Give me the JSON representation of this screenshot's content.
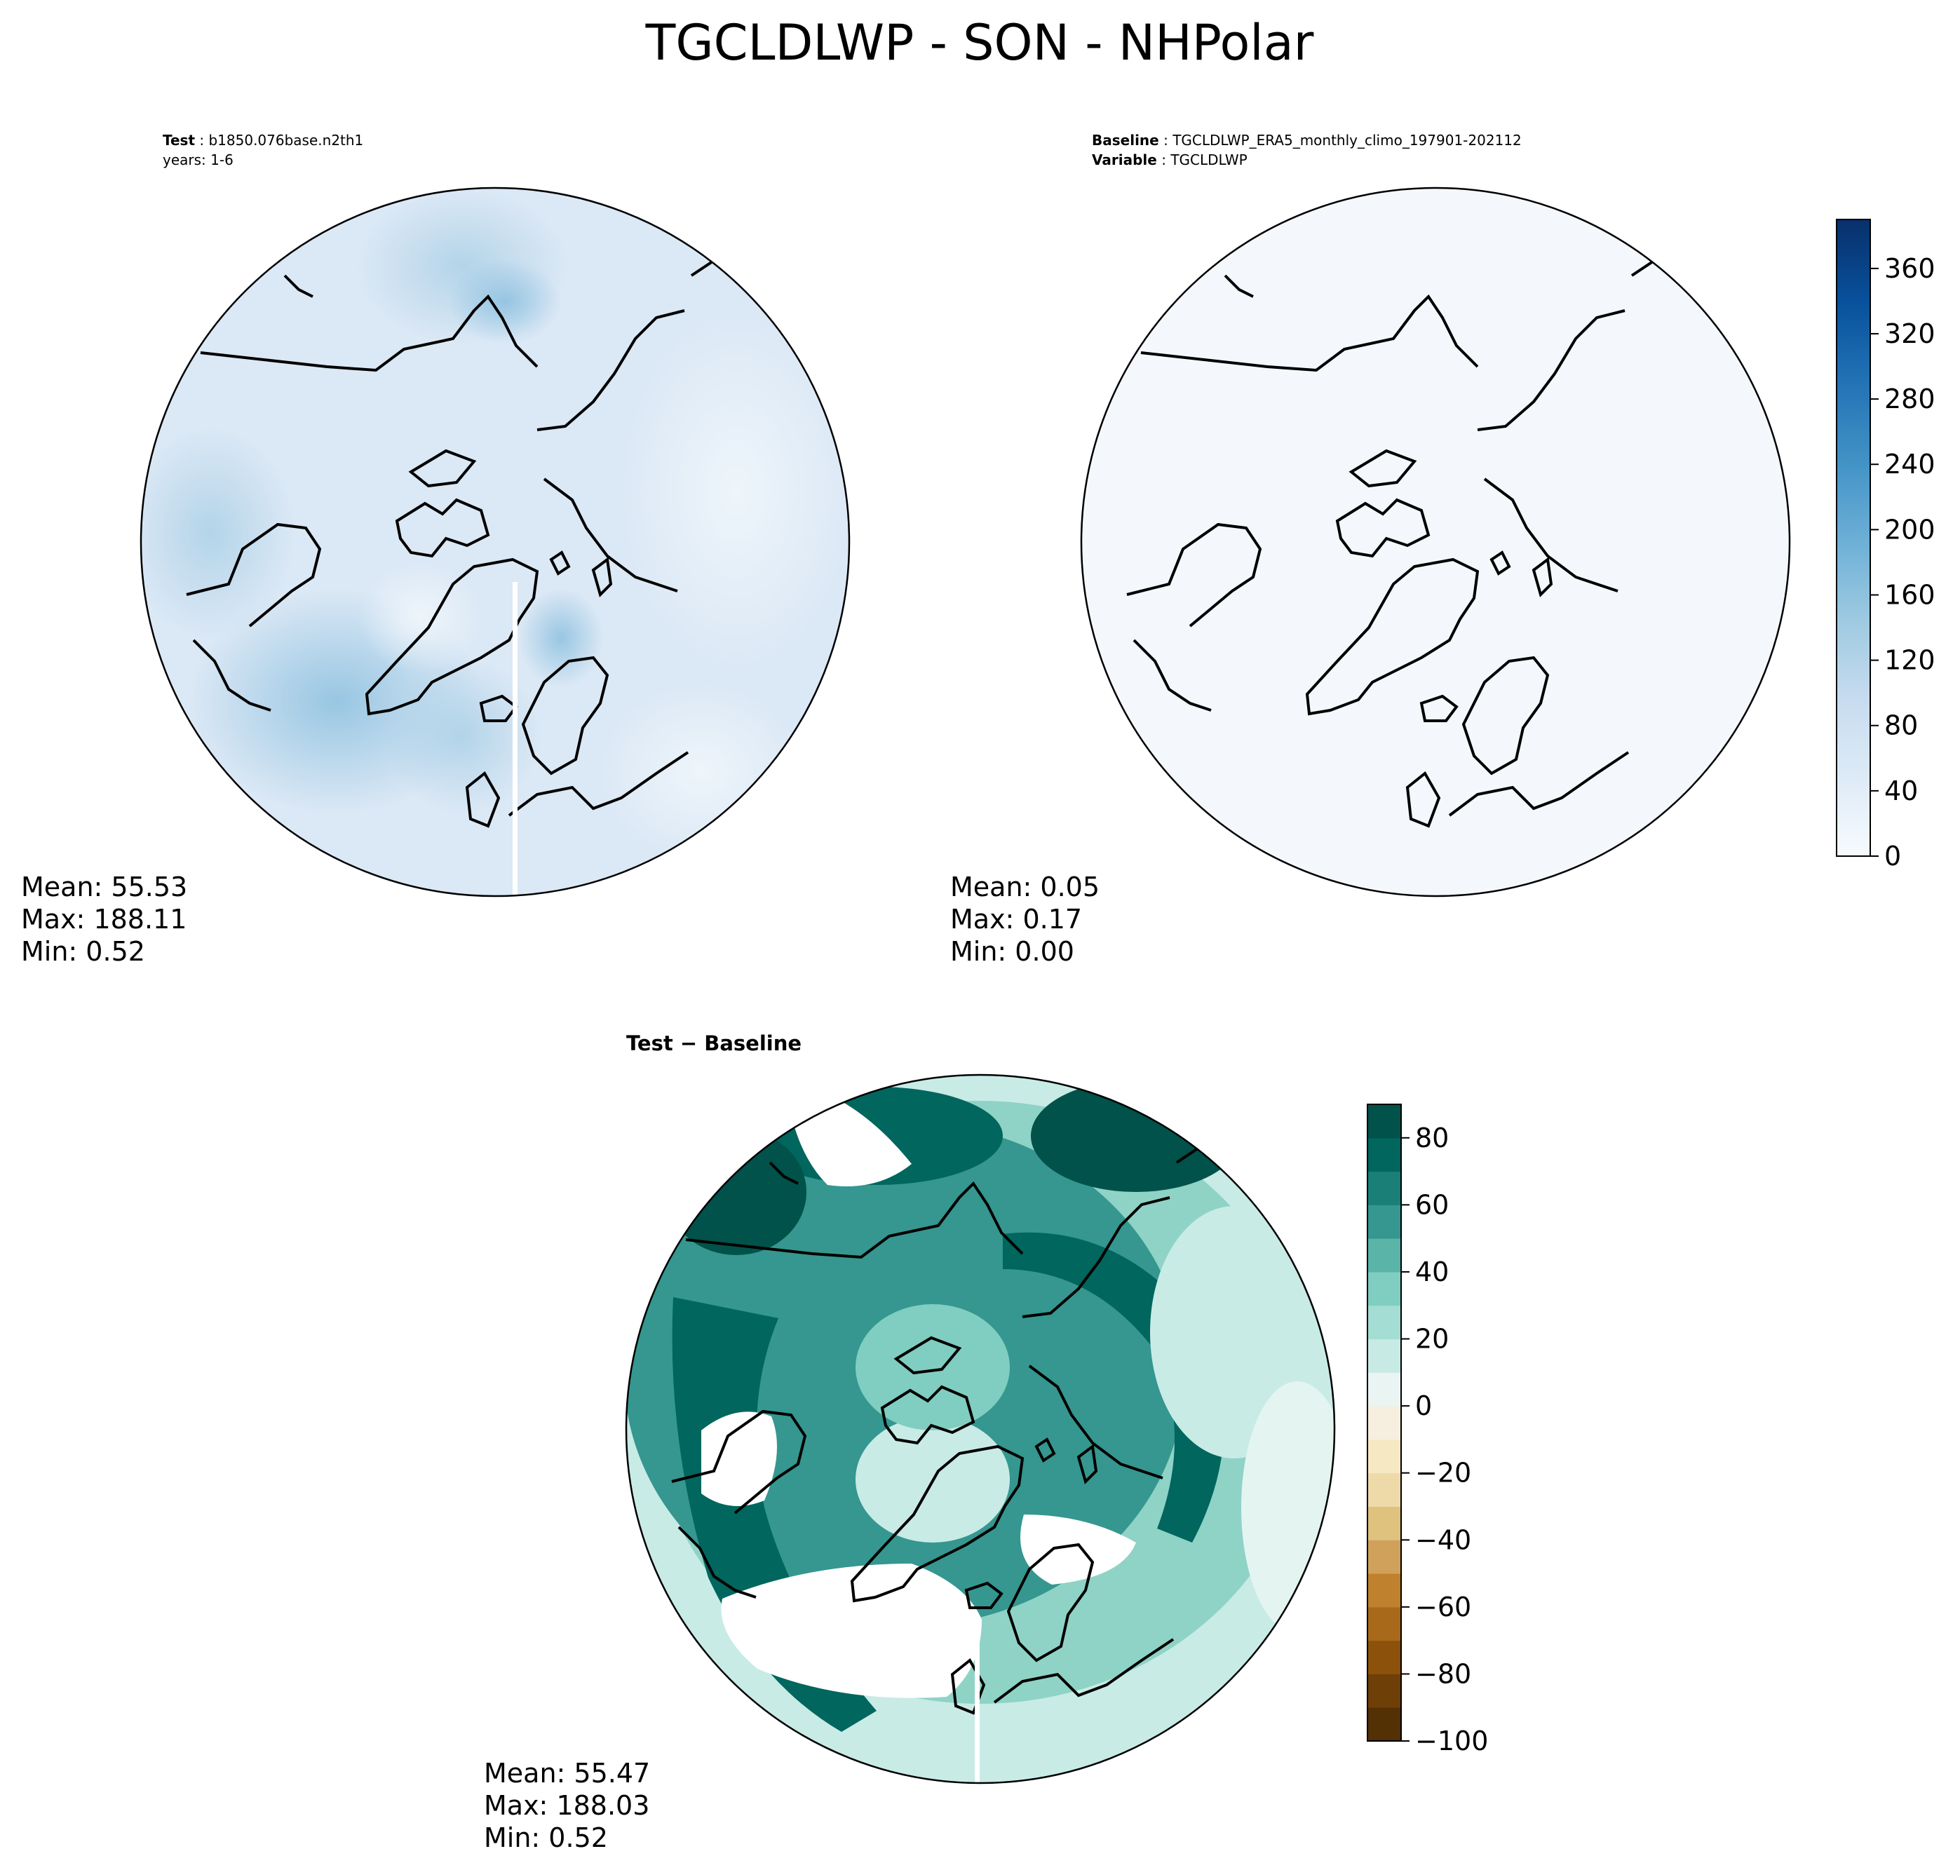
{
  "figure": {
    "title": "TGCLDLWP - SON - NHPolar"
  },
  "panels": [
    {
      "id": "test",
      "header": [
        {
          "key": "Test",
          "value": "b1850.076base.n2th1"
        },
        {
          "key": "",
          "value": "years: 1-6"
        }
      ],
      "stats": [
        "Mean: 55.53",
        "Max: 188.11",
        "Min:  0.52"
      ]
    },
    {
      "id": "baseline",
      "header": [
        {
          "key": "Baseline",
          "value": "TGCLDLWP_ERA5_monthly_climo_197901-202112"
        },
        {
          "key": "Variable",
          "value": "TGCLDLWP"
        }
      ],
      "stats": [
        "Mean:  0.05",
        "Max:  0.17",
        "Min:  0.00"
      ]
    },
    {
      "id": "difference",
      "title": "Test − Baseline",
      "stats": [
        "Mean: 55.47",
        "Max: 188.03",
        "Min:  0.52"
      ]
    }
  ],
  "colorbars": [
    {
      "id": "blues",
      "colormap": "Blues",
      "range": [
        0,
        390
      ],
      "ticks": [
        0,
        40,
        80,
        120,
        160,
        200,
        240,
        280,
        320,
        360
      ],
      "tick_labels": [
        "0",
        "40",
        "80",
        "120",
        "160",
        "200",
        "240",
        "280",
        "320",
        "360"
      ]
    },
    {
      "id": "brbg",
      "colormap": "BrBG",
      "range": [
        -100,
        90
      ],
      "ticks": [
        -100,
        -80,
        -60,
        -40,
        -20,
        0,
        20,
        40,
        60,
        80
      ],
      "tick_labels": [
        "−100",
        "−80",
        "−60",
        "−40",
        "−20",
        "0",
        "20",
        "40",
        "60",
        "80"
      ]
    }
  ],
  "colors": {
    "test_field_base": "#dce8f4",
    "baseline_field": "#f4f8fc",
    "diff_high": "#01524a",
    "diff_mid": "#5ab0a4",
    "diff_low": "#c8ebe6",
    "coastline": "#000000"
  }
}
